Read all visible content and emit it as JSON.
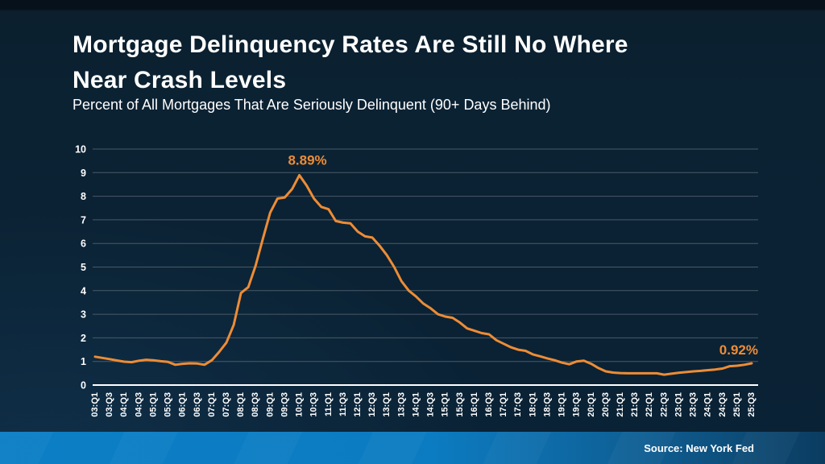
{
  "slide": {
    "title_line1": "Mortgage Delinquency Rates Are Still No Where",
    "title_line2": "Near Crash Levels",
    "subtitle": "Percent of All Mortgages That Are Seriously Delinquent (90+ Days Behind)",
    "source": "Source: New York Fed"
  },
  "colors": {
    "background": "#0a2235",
    "line": "#ee8c35",
    "annotation": "#ee8c35",
    "grid": "#4a5a66",
    "axis": "#ffffff",
    "text": "#ffffff",
    "footer_left": "#0b7ec5",
    "footer_right": "#0b3c60"
  },
  "chart_data": {
    "type": "line",
    "title": "Percent of All Mortgages That Are Seriously Delinquent (90+ Days Behind)",
    "xlabel": "",
    "ylabel": "",
    "ylim": [
      0,
      10
    ],
    "y_ticks": [
      0,
      1,
      2,
      3,
      4,
      5,
      6,
      7,
      8,
      9,
      10
    ],
    "grid": true,
    "x_tick_step": 2,
    "x": [
      "03:Q1",
      "03:Q2",
      "03:Q3",
      "03:Q4",
      "04:Q1",
      "04:Q2",
      "04:Q3",
      "04:Q4",
      "05:Q1",
      "05:Q2",
      "05:Q3",
      "05:Q4",
      "06:Q1",
      "06:Q2",
      "06:Q3",
      "06:Q4",
      "07:Q1",
      "07:Q2",
      "07:Q3",
      "07:Q4",
      "08:Q1",
      "08:Q2",
      "08:Q3",
      "08:Q4",
      "09:Q1",
      "09:Q2",
      "09:Q3",
      "09:Q4",
      "10:Q1",
      "10:Q2",
      "10:Q3",
      "10:Q4",
      "11:Q1",
      "11:Q2",
      "11:Q3",
      "11:Q4",
      "12:Q1",
      "12:Q2",
      "12:Q3",
      "12:Q4",
      "13:Q1",
      "13:Q2",
      "13:Q3",
      "13:Q4",
      "14:Q1",
      "14:Q2",
      "14:Q3",
      "14:Q4",
      "15:Q1",
      "15:Q2",
      "15:Q3",
      "15:Q4",
      "16:Q1",
      "16:Q2",
      "16:Q3",
      "16:Q4",
      "17:Q1",
      "17:Q2",
      "17:Q3",
      "17:Q4",
      "18:Q1",
      "18:Q2",
      "18:Q3",
      "18:Q4",
      "19:Q1",
      "19:Q2",
      "19:Q3",
      "19:Q4",
      "20:Q1",
      "20:Q2",
      "20:Q3",
      "20:Q4",
      "21:Q1",
      "21:Q2",
      "21:Q3",
      "21:Q4",
      "22:Q1",
      "22:Q2",
      "22:Q3",
      "22:Q4",
      "23:Q1",
      "23:Q2",
      "23:Q3",
      "23:Q4",
      "24:Q1",
      "24:Q2",
      "24:Q3",
      "24:Q4",
      "25:Q1",
      "25:Q2",
      "25:Q3"
    ],
    "values": [
      1.2,
      1.15,
      1.1,
      1.04,
      0.99,
      0.97,
      1.03,
      1.07,
      1.05,
      1.01,
      0.98,
      0.86,
      0.9,
      0.92,
      0.91,
      0.86,
      1.05,
      1.4,
      1.8,
      2.55,
      3.9,
      4.15,
      5.05,
      6.2,
      7.3,
      7.9,
      7.95,
      8.3,
      8.89,
      8.45,
      7.9,
      7.55,
      7.45,
      6.95,
      6.88,
      6.85,
      6.5,
      6.3,
      6.25,
      5.9,
      5.5,
      5.0,
      4.4,
      4.0,
      3.75,
      3.45,
      3.25,
      3.0,
      2.9,
      2.85,
      2.65,
      2.4,
      2.3,
      2.2,
      2.15,
      1.9,
      1.75,
      1.6,
      1.5,
      1.45,
      1.3,
      1.22,
      1.13,
      1.05,
      0.95,
      0.88,
      1.0,
      1.03,
      0.9,
      0.72,
      0.58,
      0.53,
      0.51,
      0.5,
      0.5,
      0.5,
      0.5,
      0.5,
      0.44,
      0.48,
      0.52,
      0.55,
      0.58,
      0.6,
      0.63,
      0.66,
      0.7,
      0.8,
      0.82,
      0.86,
      0.92
    ],
    "annotations": [
      {
        "label": "8.89%",
        "x": "10:Q1",
        "y": 8.89,
        "at": "peak"
      },
      {
        "label": "0.92%",
        "x": "25:Q3",
        "y": 0.92,
        "at": "end"
      }
    ],
    "legend": null
  }
}
